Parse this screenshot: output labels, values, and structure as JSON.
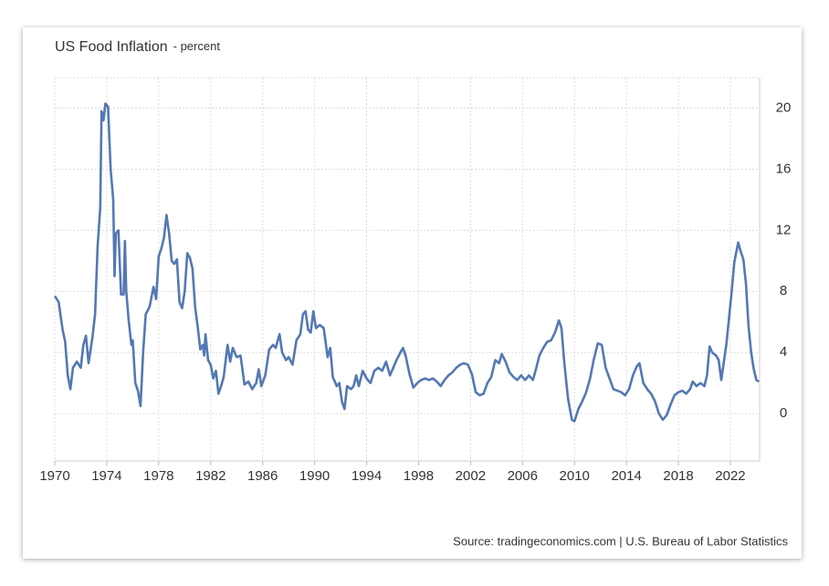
{
  "chart_data": {
    "type": "line",
    "title": "US Food Inflation",
    "subtitle": "- percent",
    "source": "Source: tradingeconomics.com | U.S. Bureau of Labor Statistics",
    "grid": true,
    "y_axis_side": "right",
    "xlim": [
      1970,
      2024.25
    ],
    "xticks": [
      1970,
      1974,
      1978,
      1982,
      1986,
      1990,
      1994,
      1998,
      2002,
      2006,
      2010,
      2014,
      2018,
      2022
    ],
    "ylim": [
      -3.1,
      22
    ],
    "yticks": [
      0,
      4,
      8,
      12,
      16,
      20
    ],
    "series": [
      {
        "name": "US Food Inflation",
        "color": "#5478b3",
        "x": [
          1970.0,
          1970.3,
          1970.6,
          1970.8,
          1971.0,
          1971.2,
          1971.4,
          1971.7,
          1972.0,
          1972.2,
          1972.4,
          1972.6,
          1972.9,
          1973.1,
          1973.3,
          1973.5,
          1973.6,
          1973.75,
          1973.9,
          1974.1,
          1974.3,
          1974.5,
          1974.6,
          1974.7,
          1974.9,
          1975.1,
          1975.3,
          1975.4,
          1975.5,
          1975.7,
          1975.9,
          1976.0,
          1976.2,
          1976.4,
          1976.6,
          1976.8,
          1977.0,
          1977.3,
          1977.6,
          1977.8,
          1978.0,
          1978.2,
          1978.4,
          1978.6,
          1978.8,
          1979.0,
          1979.2,
          1979.4,
          1979.6,
          1979.8,
          1980.0,
          1980.2,
          1980.4,
          1980.6,
          1980.8,
          1981.0,
          1981.2,
          1981.4,
          1981.5,
          1981.6,
          1981.8,
          1982.0,
          1982.2,
          1982.4,
          1982.6,
          1982.8,
          1983.0,
          1983.3,
          1983.5,
          1983.7,
          1984.0,
          1984.3,
          1984.6,
          1984.9,
          1985.2,
          1985.5,
          1985.7,
          1985.9,
          1986.2,
          1986.5,
          1986.8,
          1987.0,
          1987.3,
          1987.5,
          1987.8,
          1988.0,
          1988.3,
          1988.6,
          1988.9,
          1989.1,
          1989.3,
          1989.5,
          1989.7,
          1989.9,
          1990.1,
          1990.4,
          1990.7,
          1991.0,
          1991.2,
          1991.4,
          1991.7,
          1991.9,
          1992.1,
          1992.3,
          1992.5,
          1992.8,
          1993.0,
          1993.2,
          1993.4,
          1993.7,
          1994.0,
          1994.3,
          1994.6,
          1994.9,
          1995.2,
          1995.5,
          1995.8,
          1996.0,
          1996.3,
          1996.6,
          1996.8,
          1997.0,
          1997.3,
          1997.6,
          1997.9,
          1998.2,
          1998.5,
          1998.8,
          1999.1,
          1999.4,
          1999.7,
          2000.0,
          2000.3,
          2000.6,
          2000.9,
          2001.2,
          2001.5,
          2001.8,
          2002.1,
          2002.4,
          2002.7,
          2003.0,
          2003.3,
          2003.6,
          2003.9,
          2004.2,
          2004.4,
          2004.7,
          2005.0,
          2005.3,
          2005.6,
          2005.9,
          2006.2,
          2006.5,
          2006.8,
          2007.0,
          2007.3,
          2007.6,
          2007.9,
          2008.2,
          2008.5,
          2008.8,
          2009.0,
          2009.2,
          2009.5,
          2009.8,
          2010.0,
          2010.3,
          2010.6,
          2010.9,
          2011.2,
          2011.5,
          2011.8,
          2012.1,
          2012.4,
          2012.7,
          2013.0,
          2013.3,
          2013.6,
          2013.9,
          2014.2,
          2014.5,
          2014.8,
          2015.0,
          2015.3,
          2015.6,
          2015.9,
          2016.2,
          2016.5,
          2016.8,
          2017.1,
          2017.4,
          2017.7,
          2018.0,
          2018.3,
          2018.6,
          2018.9,
          2019.1,
          2019.4,
          2019.7,
          2020.0,
          2020.2,
          2020.4,
          2020.6,
          2020.9,
          2021.1,
          2021.3,
          2021.5,
          2021.7,
          2021.9,
          2022.1,
          2022.3,
          2022.6,
          2022.8,
          2023.0,
          2023.2,
          2023.4,
          2023.6,
          2023.8,
          2024.0,
          2024.2
        ],
        "values": [
          7.7,
          7.3,
          5.5,
          4.7,
          2.5,
          1.6,
          3.0,
          3.4,
          3.0,
          4.5,
          5.1,
          3.3,
          5.0,
          6.5,
          11,
          13.5,
          19.8,
          19.2,
          20.3,
          20.1,
          16,
          14,
          9,
          11.8,
          12,
          7.8,
          7.8,
          11.3,
          8,
          6,
          4.5,
          4.8,
          2.0,
          1.5,
          0.5,
          4,
          6.5,
          7,
          8.3,
          7.5,
          10.3,
          10.8,
          11.5,
          13,
          11.8,
          10.0,
          9.8,
          10.1,
          7.3,
          6.9,
          8,
          10.5,
          10.2,
          9.5,
          7,
          5.7,
          4.2,
          4.5,
          3.8,
          5.2,
          3.5,
          3.2,
          2.3,
          2.8,
          1.3,
          1.8,
          2.4,
          4.5,
          3.4,
          4.3,
          3.7,
          3.8,
          1.9,
          2.1,
          1.6,
          2.0,
          2.9,
          1.8,
          2.5,
          4.2,
          4.5,
          4.3,
          5.2,
          4.0,
          3.5,
          3.7,
          3.2,
          4.8,
          5.2,
          6.5,
          6.7,
          5.5,
          5.3,
          6.7,
          5.6,
          5.8,
          5.6,
          3.7,
          4.3,
          2.4,
          1.8,
          2.0,
          0.8,
          0.3,
          1.8,
          1.6,
          1.8,
          2.5,
          1.8,
          2.8,
          2.3,
          2.0,
          2.8,
          3.0,
          2.8,
          3.4,
          2.5,
          2.9,
          3.5,
          4.0,
          4.3,
          3.8,
          2.6,
          1.7,
          2.0,
          2.2,
          2.3,
          2.2,
          2.3,
          2.1,
          1.8,
          2.2,
          2.5,
          2.7,
          3.0,
          3.2,
          3.3,
          3.2,
          2.6,
          1.4,
          1.2,
          1.3,
          2.0,
          2.4,
          3.5,
          3.3,
          3.9,
          3.4,
          2.7,
          2.4,
          2.2,
          2.5,
          2.2,
          2.5,
          2.2,
          2.8,
          3.8,
          4.3,
          4.7,
          4.8,
          5.3,
          6.1,
          5.6,
          3.5,
          1.0,
          -0.4,
          -0.5,
          0.3,
          0.8,
          1.4,
          2.3,
          3.6,
          4.6,
          4.5,
          3.0,
          2.3,
          1.6,
          1.5,
          1.4,
          1.2,
          1.6,
          2.5,
          3.1,
          3.3,
          2.0,
          1.6,
          1.3,
          0.8,
          0.0,
          -0.4,
          -0.1,
          0.6,
          1.2,
          1.4,
          1.5,
          1.3,
          1.6,
          2.1,
          1.8,
          2.0,
          1.8,
          2.5,
          4.4,
          4.0,
          3.8,
          3.5,
          2.2,
          3.4,
          4.6,
          6.3,
          8.0,
          9.9,
          11.2,
          10.6,
          10.1,
          8.5,
          5.7,
          4.0,
          2.9,
          2.2,
          2.1
        ]
      }
    ]
  }
}
